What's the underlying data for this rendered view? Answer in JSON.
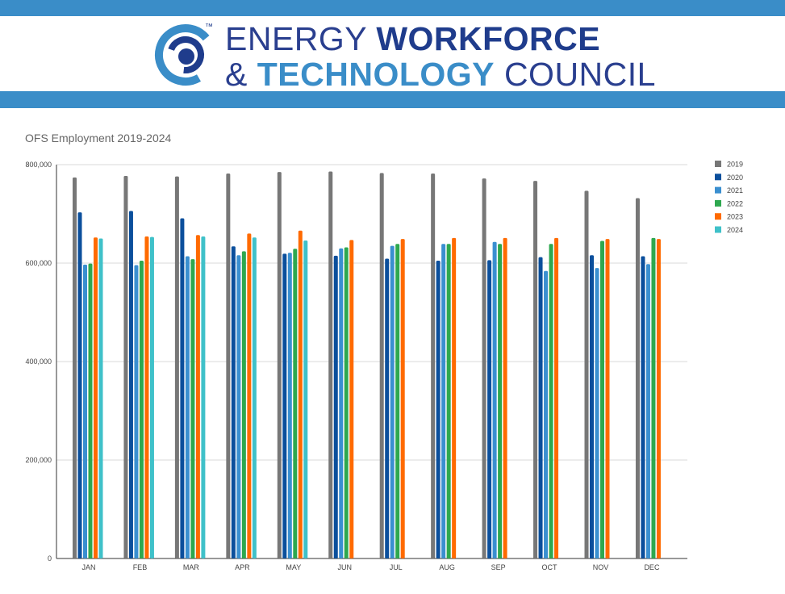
{
  "header": {
    "logo_line1_light": "ENERGY ",
    "logo_line1_bold": "WORKFORCE",
    "logo_line2_light": "& ",
    "logo_line2_accent": "TECHNOLOGY",
    "logo_line2_light2": " COUNCIL",
    "trademark": "™",
    "band_color": "#3a8dc8"
  },
  "chart_data": {
    "type": "bar",
    "title": "OFS Employment 2019-2024",
    "xlabel": "",
    "ylabel": "",
    "ylim": [
      0,
      800000
    ],
    "yticks": [
      "0",
      "200,000",
      "400,000",
      "600,000",
      "800,000"
    ],
    "grid": true,
    "legend": "right",
    "categories": [
      "JAN",
      "FEB",
      "MAR",
      "APR",
      "MAY",
      "JUN",
      "JUL",
      "AUG",
      "SEP",
      "OCT",
      "NOV",
      "DEC"
    ],
    "series": [
      {
        "name": "2019",
        "color": "#777777",
        "values": [
          774000,
          777000,
          776000,
          782000,
          785000,
          786000,
          783000,
          782000,
          772000,
          767000,
          747000,
          732000
        ]
      },
      {
        "name": "2020",
        "color": "#0b4f9c",
        "values": [
          703000,
          706000,
          691000,
          634000,
          619000,
          615000,
          609000,
          605000,
          606000,
          612000,
          616000,
          614000
        ]
      },
      {
        "name": "2021",
        "color": "#3a8fd0",
        "values": [
          597000,
          596000,
          614000,
          616000,
          621000,
          630000,
          635000,
          639000,
          643000,
          584000,
          590000,
          598000
        ]
      },
      {
        "name": "2022",
        "color": "#2ea84f",
        "values": [
          599000,
          605000,
          608000,
          624000,
          629000,
          632000,
          639000,
          639000,
          639000,
          639000,
          645000,
          651000
        ]
      },
      {
        "name": "2023",
        "color": "#ff6a00",
        "values": [
          652000,
          654000,
          657000,
          660000,
          666000,
          647000,
          649000,
          651000,
          651000,
          651000,
          649000,
          649000
        ]
      },
      {
        "name": "2024",
        "color": "#3fc1c9",
        "values": [
          650000,
          653000,
          654000,
          652000,
          646000,
          null,
          null,
          null,
          null,
          null,
          null,
          null
        ]
      }
    ]
  }
}
